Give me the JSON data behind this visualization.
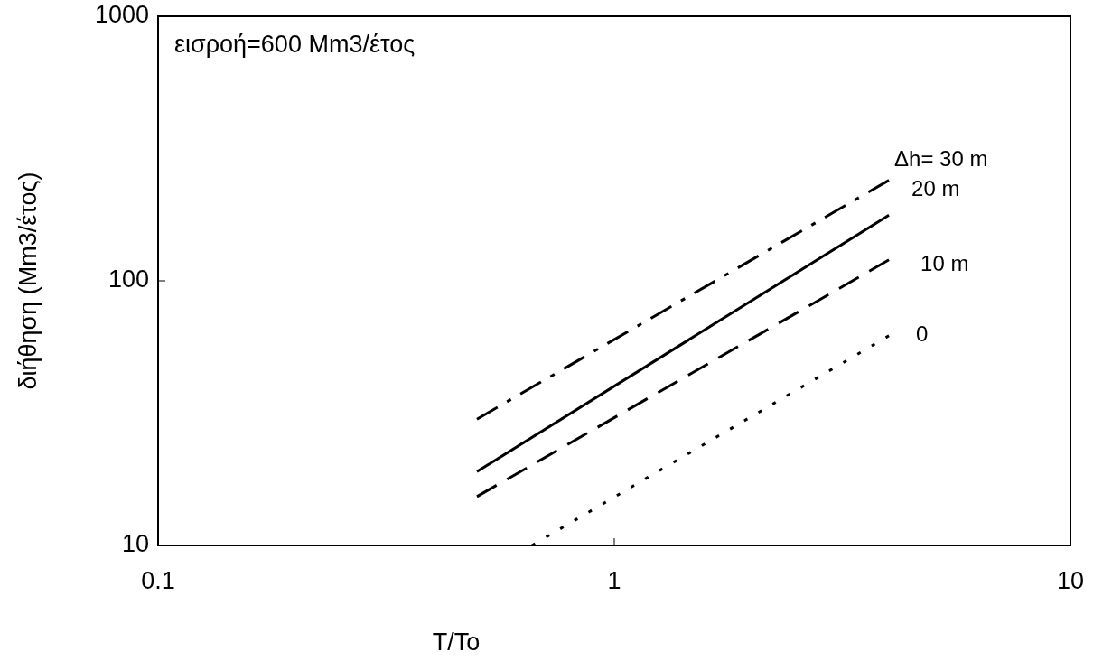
{
  "chart_data": {
    "type": "line",
    "xlabel": "T/To",
    "ylabel": "διήθηση (Mm3/έτος)",
    "log": "xy",
    "xlim": [
      0.1,
      10
    ],
    "ylim": [
      10,
      1000
    ],
    "xticks": [
      0.1,
      1,
      10
    ],
    "yticks": [
      10,
      100,
      1000
    ],
    "annotations": [
      "εισροή=600 Mm3/έτος"
    ],
    "marker": "none",
    "grid": false,
    "series": [
      {
        "name": "Δh= 30 m",
        "color": "#000000",
        "line_style": "dashdot",
        "x": [
          0.5,
          4
        ],
        "values": [
          30,
          240
        ]
      },
      {
        "name": "20 m",
        "color": "#000000",
        "line_style": "solid",
        "x": [
          0.5,
          4
        ],
        "values": [
          19,
          177
        ]
      },
      {
        "name": "10 m",
        "color": "#000000",
        "line_style": "dashed",
        "x": [
          0.5,
          4
        ],
        "values": [
          15.3,
          120
        ]
      },
      {
        "name": "0",
        "color": "#000000",
        "line_style": "dotted",
        "x": [
          0.66,
          4
        ],
        "values": [
          10,
          62
        ]
      }
    ]
  }
}
